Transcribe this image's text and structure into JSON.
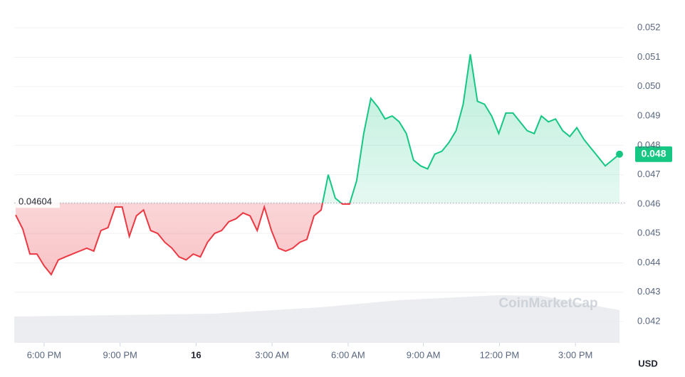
{
  "chart_data": {
    "type": "line",
    "series": [
      {
        "name": "Price",
        "color_up": "#16c784",
        "color_down": "#ea3943",
        "values": [
          0.04563,
          0.04515,
          0.0443,
          0.0443,
          0.0439,
          0.0436,
          0.0441,
          0.0442,
          0.0443,
          0.0444,
          0.0445,
          0.0444,
          0.0451,
          0.0452,
          0.0459,
          0.0459,
          0.0449,
          0.0456,
          0.0458,
          0.0451,
          0.045,
          0.0447,
          0.0445,
          0.0442,
          0.0441,
          0.0443,
          0.0442,
          0.0447,
          0.045,
          0.0451,
          0.0454,
          0.0455,
          0.0457,
          0.0456,
          0.0451,
          0.0459,
          0.0451,
          0.0445,
          0.0444,
          0.0445,
          0.0447,
          0.0448,
          0.0456,
          0.0458,
          0.047,
          0.0462,
          0.046,
          0.046,
          0.0468,
          0.0484,
          0.0496,
          0.0493,
          0.0489,
          0.049,
          0.0488,
          0.0484,
          0.0475,
          0.0473,
          0.0472,
          0.0477,
          0.0478,
          0.0481,
          0.0485,
          0.0494,
          0.0511,
          0.0495,
          0.0494,
          0.049,
          0.0484,
          0.0491,
          0.0491,
          0.0488,
          0.0485,
          0.0484,
          0.049,
          0.0488,
          0.0489,
          0.0485,
          0.0483,
          0.0486,
          0.0482,
          0.0479,
          0.0476,
          0.0473,
          0.0475,
          0.0477
        ],
        "last_label": "0.048"
      }
    ],
    "baseline": 0.04604,
    "xlim": [
      0,
      85
    ],
    "xticks": [
      {
        "value": 4,
        "label": "6:00 PM"
      },
      {
        "value": 14.7,
        "label": "9:00 PM"
      },
      {
        "value": 25.4,
        "label": "16"
      },
      {
        "value": 36.1,
        "label": "3:00 AM"
      },
      {
        "value": 46.8,
        "label": "6:00 AM"
      },
      {
        "value": 57.4,
        "label": "9:00 AM"
      },
      {
        "value": 68.1,
        "label": "12:00 PM"
      },
      {
        "value": 78.8,
        "label": "3:00 PM"
      }
    ],
    "ylim": [
      0.0413,
      0.0525
    ],
    "yticks": [
      0.042,
      0.043,
      0.044,
      0.045,
      0.046,
      0.047,
      0.048,
      0.049,
      {
        "value": 0.05,
        "label": "0.050"
      },
      0.051,
      0.052
    ],
    "grid": true,
    "currency": "USD",
    "watermark": "CoinMarketCap"
  }
}
